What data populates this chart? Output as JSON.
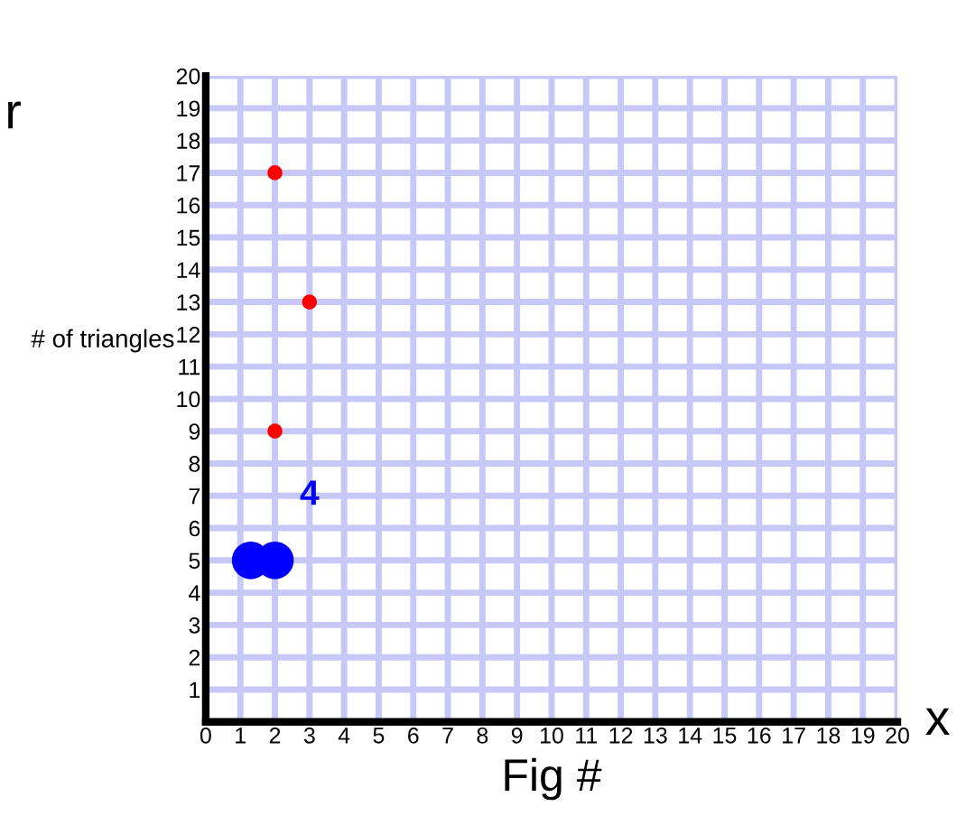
{
  "chart_data": {
    "type": "scatter",
    "xlabel": "Fig #",
    "ylabel": "# of triangles",
    "annotations": [
      "r",
      "x",
      "4"
    ],
    "series": [
      {
        "color": "#ff0000",
        "x": [
          2,
          3,
          2
        ],
        "values": [
          17,
          13,
          9
        ]
      },
      {
        "color": "#0000ff",
        "x": [
          1.3,
          2
        ],
        "values": [
          5,
          5
        ]
      }
    ],
    "xlim": [
      0,
      20
    ],
    "ylim": [
      0,
      20
    ],
    "xticks": [
      0,
      1,
      2,
      3,
      4,
      5,
      6,
      7,
      8,
      9,
      10,
      11,
      12,
      13,
      14,
      15,
      16,
      17,
      18,
      19,
      20
    ],
    "yticks": [
      1,
      2,
      3,
      4,
      5,
      6,
      7,
      8,
      9,
      10,
      11,
      12,
      13,
      14,
      15,
      16,
      17,
      18,
      19,
      20
    ],
    "grid": true,
    "marker": "circle",
    "legend": false
  }
}
